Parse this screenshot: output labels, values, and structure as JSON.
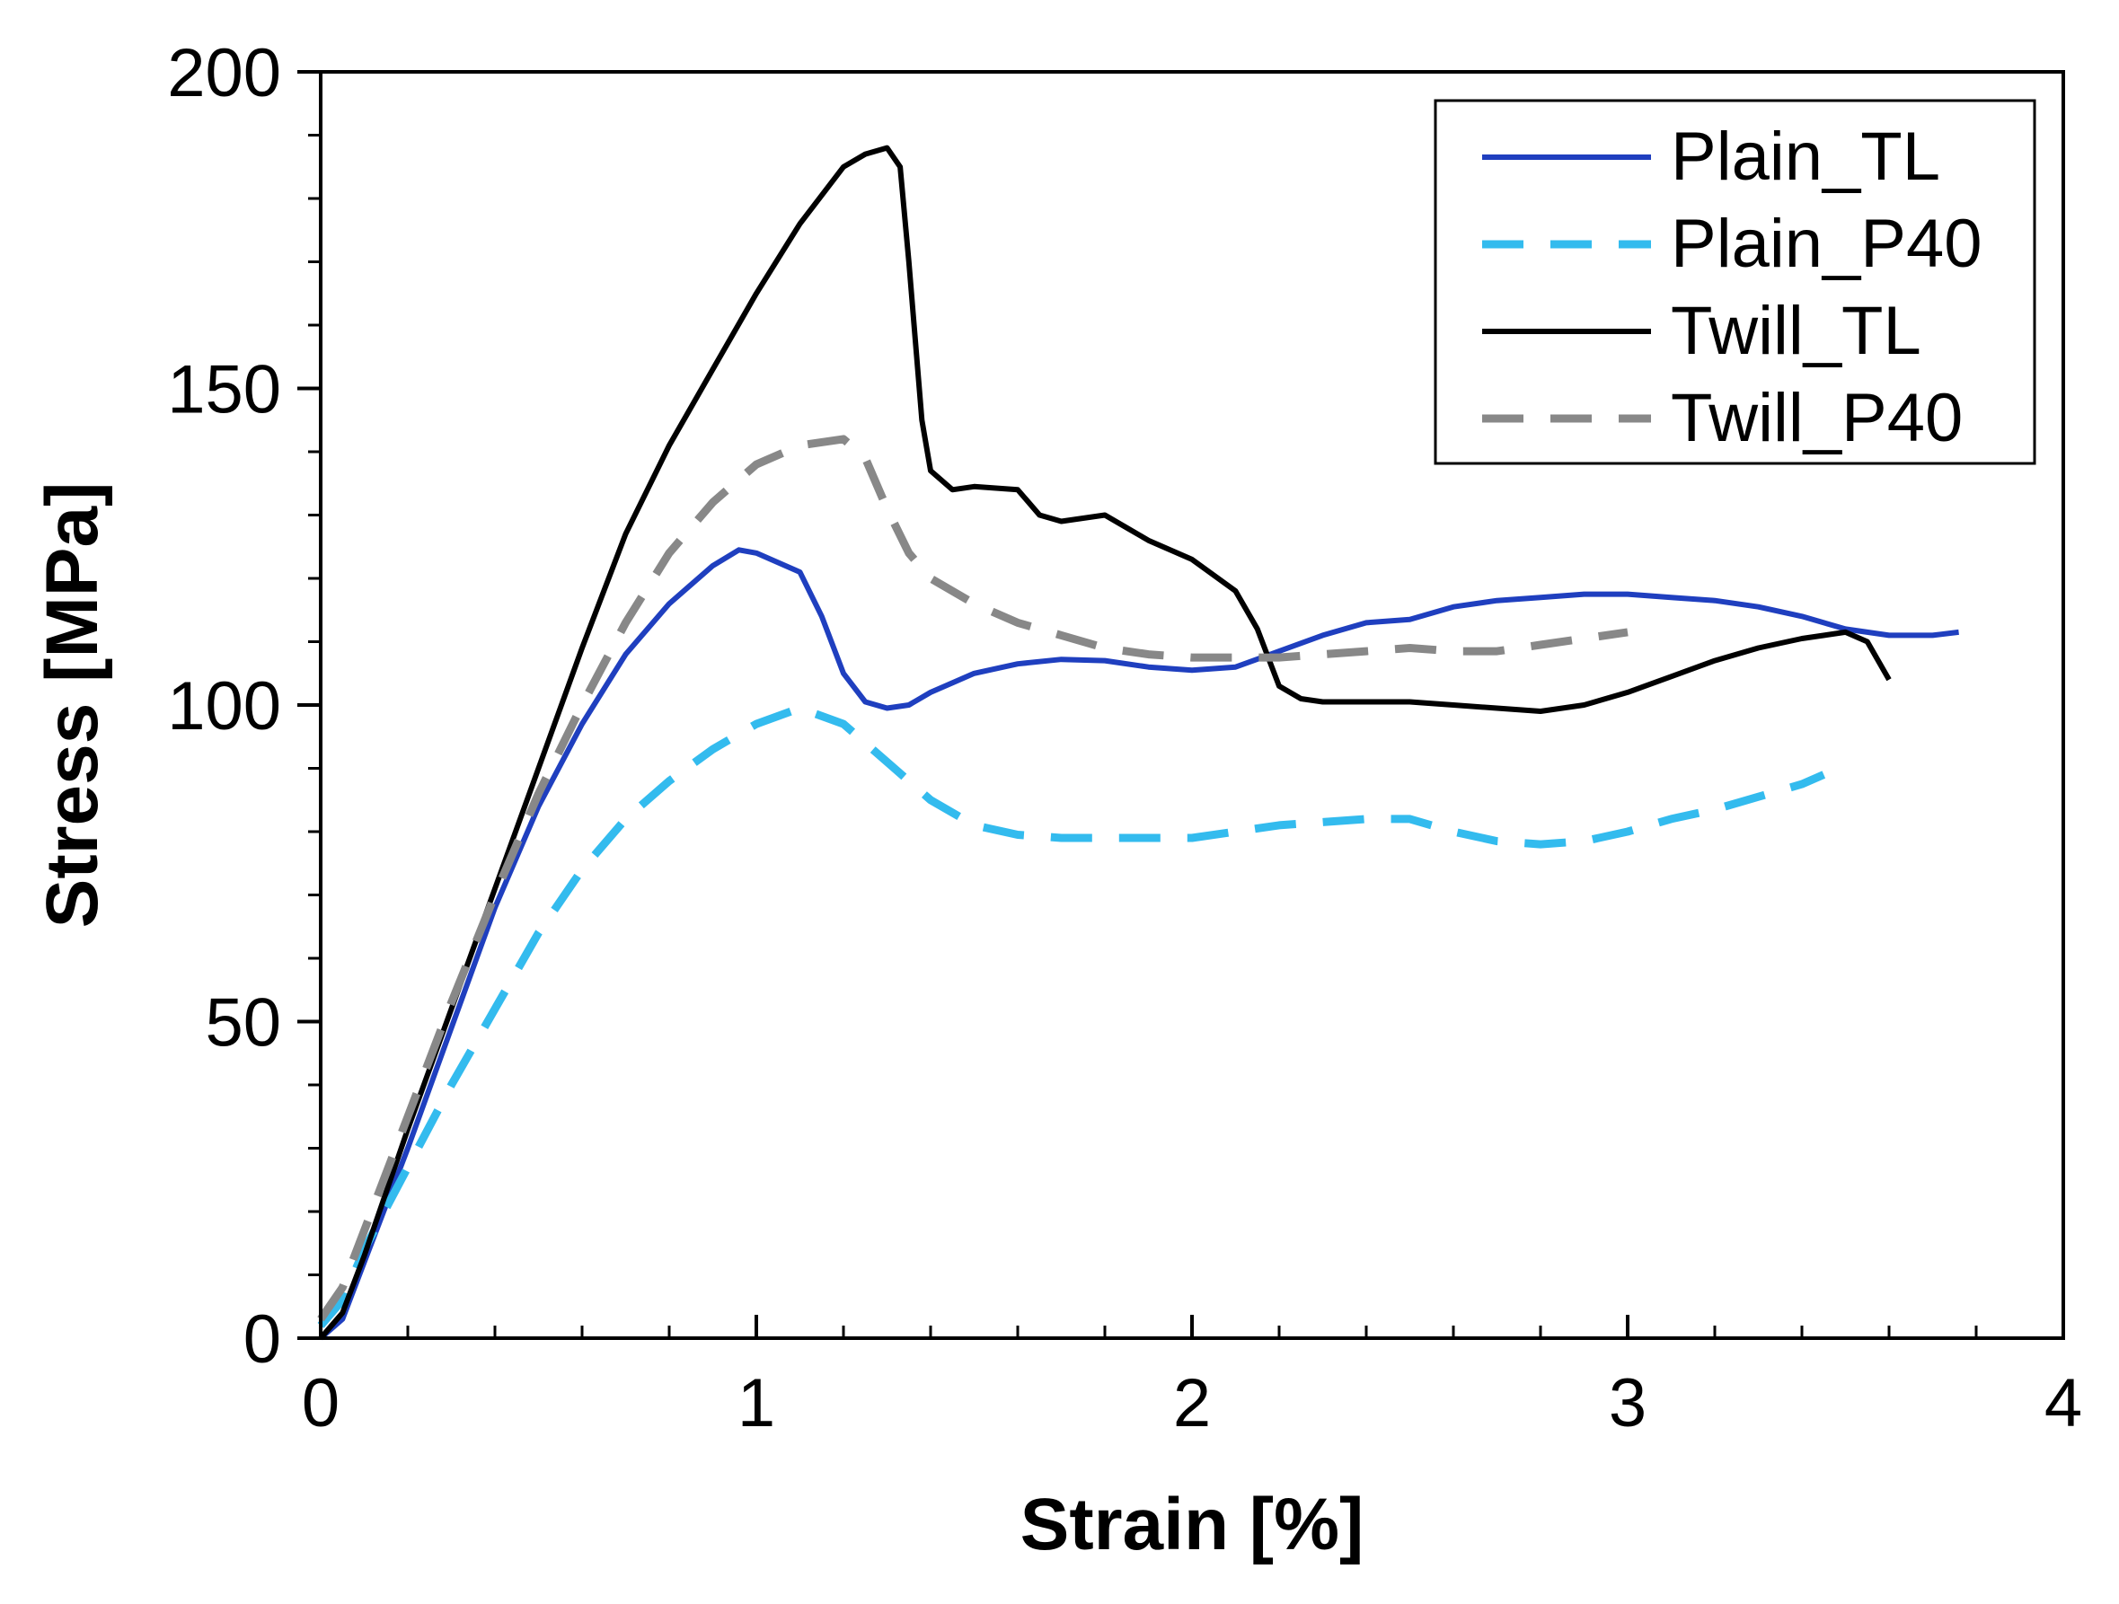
{
  "chart_data": {
    "type": "line",
    "title": "",
    "xlabel": "Strain [%]",
    "ylabel": "Stress [MPa]",
    "xlim": [
      0,
      4
    ],
    "ylim": [
      0,
      200
    ],
    "xticks": [
      0,
      1,
      2,
      3,
      4
    ],
    "yticks": [
      0,
      50,
      100,
      150,
      200
    ],
    "xtick_labels": [
      "0",
      "1",
      "2",
      "3",
      "4"
    ],
    "ytick_labels": [
      "0",
      "50",
      "100",
      "150",
      "200"
    ],
    "grid": false,
    "legend_position": "top-right",
    "series": [
      {
        "name": "Plain_TL",
        "color": "#1f3fbf",
        "dash": "solid",
        "x": [
          0,
          0.05,
          0.1,
          0.2,
          0.3,
          0.4,
          0.5,
          0.6,
          0.7,
          0.8,
          0.9,
          0.96,
          1.0,
          1.1,
          1.15,
          1.2,
          1.25,
          1.3,
          1.35,
          1.4,
          1.5,
          1.6,
          1.7,
          1.8,
          1.9,
          2.0,
          2.1,
          2.2,
          2.3,
          2.4,
          2.5,
          2.6,
          2.7,
          2.8,
          2.9,
          3.0,
          3.1,
          3.2,
          3.3,
          3.4,
          3.5,
          3.6,
          3.7,
          3.76
        ],
        "values": [
          0,
          3,
          12,
          30,
          49,
          68,
          84,
          97,
          108,
          116,
          122,
          124.5,
          124,
          121,
          114,
          105,
          100.5,
          99.5,
          100,
          102,
          105,
          106.5,
          107.2,
          107,
          106,
          105.5,
          106,
          108.5,
          111,
          113,
          113.5,
          115.5,
          116.5,
          117,
          117.5,
          117.5,
          117,
          116.5,
          115.5,
          114,
          112,
          111,
          111,
          111.5
        ]
      },
      {
        "name": "Plain_P40",
        "color": "#33bbee",
        "dash": "dashed",
        "x": [
          0,
          0.05,
          0.1,
          0.2,
          0.3,
          0.4,
          0.5,
          0.6,
          0.7,
          0.8,
          0.9,
          1.0,
          1.1,
          1.2,
          1.3,
          1.4,
          1.5,
          1.6,
          1.7,
          1.8,
          1.9,
          2.0,
          2.1,
          2.2,
          2.3,
          2.4,
          2.5,
          2.6,
          2.7,
          2.8,
          2.9,
          3.0,
          3.1,
          3.2,
          3.3,
          3.4,
          3.45
        ],
        "values": [
          2,
          6,
          14,
          27,
          40,
          52,
          64,
          74,
          82,
          88,
          93,
          97,
          99.5,
          97,
          91,
          85,
          81,
          79.5,
          79,
          79,
          79,
          79,
          80,
          81,
          81.5,
          82,
          82,
          80,
          78.5,
          78,
          78.5,
          80,
          82,
          83.5,
          85.5,
          87.5,
          89
        ]
      },
      {
        "name": "Twill_TL",
        "color": "#000000",
        "dash": "solid",
        "x": [
          0,
          0.05,
          0.1,
          0.2,
          0.3,
          0.4,
          0.5,
          0.6,
          0.7,
          0.8,
          0.9,
          1.0,
          1.1,
          1.2,
          1.25,
          1.3,
          1.33,
          1.35,
          1.38,
          1.4,
          1.45,
          1.5,
          1.6,
          1.65,
          1.7,
          1.8,
          1.85,
          1.9,
          2.0,
          2.1,
          2.15,
          2.2,
          2.25,
          2.3,
          2.4,
          2.5,
          2.6,
          2.7,
          2.8,
          2.9,
          3.0,
          3.1,
          3.2,
          3.3,
          3.4,
          3.5,
          3.55,
          3.6
        ],
        "values": [
          0,
          4,
          13,
          33,
          52,
          71,
          90,
          109,
          127,
          141,
          153,
          165,
          176,
          185,
          187,
          188,
          185,
          170,
          145,
          137,
          134,
          134.5,
          134,
          130,
          129,
          130,
          128,
          126,
          123,
          118,
          112,
          103,
          101,
          100.5,
          100.5,
          100.5,
          100,
          99.5,
          99,
          100,
          102,
          104.5,
          107,
          109,
          110.5,
          111.5,
          110,
          104
        ]
      },
      {
        "name": "Twill_P40",
        "color": "#888888",
        "dash": "dashed",
        "x": [
          0,
          0.05,
          0.1,
          0.2,
          0.3,
          0.4,
          0.5,
          0.6,
          0.7,
          0.8,
          0.9,
          1.0,
          1.1,
          1.2,
          1.25,
          1.3,
          1.35,
          1.4,
          1.5,
          1.6,
          1.7,
          1.8,
          1.9,
          2.0,
          2.1,
          2.2,
          2.3,
          2.4,
          2.5,
          2.6,
          2.7,
          2.8,
          2.9,
          3.0
        ],
        "values": [
          3,
          8,
          17,
          35,
          53,
          70,
          86,
          100,
          113,
          124,
          132,
          138,
          141,
          142,
          139,
          131,
          124,
          120,
          116,
          113,
          111,
          109,
          108,
          107.5,
          107.5,
          107.5,
          108,
          108.5,
          109,
          108.5,
          108.5,
          109.5,
          110.5,
          111.5
        ]
      }
    ]
  }
}
